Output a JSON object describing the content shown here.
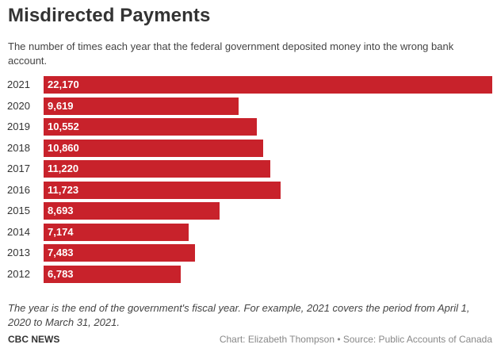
{
  "title": "Misdirected Payments",
  "subtitle": "The number of times each year that the federal government deposited money into the wrong bank account.",
  "note": "The year is the end of the government's fiscal year. For example, 2021 covers the period from April 1, 2020 to March 31, 2021.",
  "brand": "CBC NEWS",
  "credit": "Chart: Elizabeth Thompson • Source: Public Accounts of Canada",
  "colors": {
    "bar": "#c8222b",
    "bar_label": "#ffffff"
  },
  "chart_data": {
    "type": "bar",
    "orientation": "horizontal",
    "categories": [
      "2021",
      "2020",
      "2019",
      "2018",
      "2017",
      "2016",
      "2015",
      "2014",
      "2013",
      "2012"
    ],
    "values": [
      22170,
      9619,
      10552,
      10860,
      11220,
      11723,
      8693,
      7174,
      7483,
      6783
    ],
    "value_labels": [
      "22,170",
      "9,619",
      "10,552",
      "10,860",
      "11,220",
      "11,723",
      "8,693",
      "7,174",
      "7,483",
      "6,783"
    ],
    "xlim": [
      0,
      22170
    ],
    "grid": false,
    "legend": false
  }
}
